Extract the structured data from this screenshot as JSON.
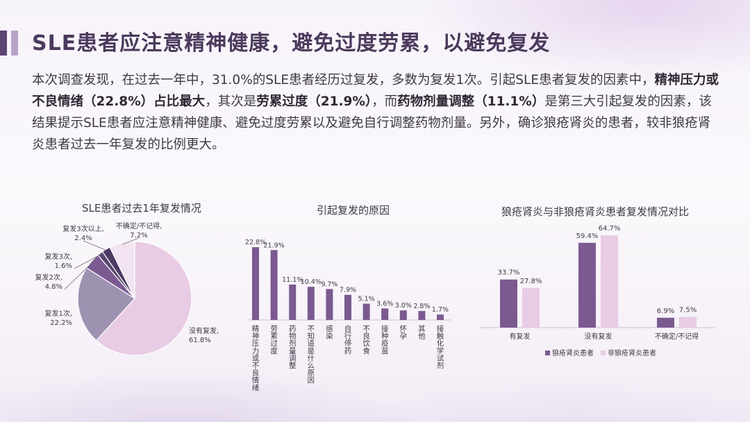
{
  "page": {
    "title": "SLE患者应注意精神健康，避免过度劳累，以避免复发",
    "intro": {
      "p1": "本次调查发现，在过去一年中，31.0%的SLE患者经历过复发，多数为复发1次。引起SLE患者复发的因素中，",
      "b1": "精神压力或不良情绪（22.8%）占比最大",
      "p2": "，其次是",
      "b2": "劳累过度（21.9%）",
      "p3": "，而",
      "b3": "药物剂量调整（11.1%）",
      "p4": "是第三大引起复发的因素，该结果提示SLE患者应注意精神健康、避免过度劳累以及避免自行调整药物剂量。另外，确诊狼疮肾炎的患者，较非狼疮肾炎患者过去一年复发的比例更大。"
    }
  },
  "colors": {
    "dark": "#7a5a90",
    "mid": "#9e92b1",
    "light": "#e8cbe4",
    "darkest": "#4e3a63",
    "accent": "#5e4474"
  },
  "chart_data": [
    {
      "type": "pie",
      "title": "SLE患者过去1年复发情况",
      "slices": [
        {
          "label": "没有复发,",
          "pct": "61.8%",
          "value": 61.8,
          "color": "#e8cbe4"
        },
        {
          "label": "复发1次,",
          "pct": "22.2%",
          "value": 22.2,
          "color": "#9e92b1"
        },
        {
          "label": "复发2次,",
          "pct": "4.8%",
          "value": 4.8,
          "color": "#7a5a90"
        },
        {
          "label": "复发3次,",
          "pct": "1.6%",
          "value": 1.6,
          "color": "#5a4670"
        },
        {
          "label": "复发3次以上,",
          "pct": "2.4%",
          "value": 2.4,
          "color": "#4e3a63"
        },
        {
          "label": "不确定/不记得,",
          "pct": "7.2%",
          "value": 7.2,
          "color": "#f1e3f0"
        }
      ]
    },
    {
      "type": "bar",
      "title": "引起复发的原因",
      "categories": [
        "精神压力或不良情绪",
        "劳累过度",
        "药物剂量调整",
        "不知道是什么原因",
        "感染",
        "自行停药",
        "不良饮食",
        "接种疫苗",
        "怀孕",
        "其他",
        "接触化学试剂"
      ],
      "values": [
        22.8,
        21.9,
        11.1,
        10.4,
        9.7,
        7.9,
        5.1,
        3.6,
        3.0,
        2.8,
        1.7
      ],
      "labels": [
        "22.8%",
        "21.9%",
        "11.1%",
        "10.4%",
        "9.7%",
        "7.9%",
        "5.1%",
        "3.6%",
        "3.0%",
        "2.8%",
        "1.7%"
      ],
      "ylim": [
        0,
        25
      ],
      "color": "#7a5a90"
    },
    {
      "type": "bar",
      "title": "狼疮肾炎与非狼疮肾炎患者复发情况对比",
      "categories": [
        "有复发",
        "没有复发",
        "不确定/不记得"
      ],
      "series": [
        {
          "name": "狼疮肾炎患者",
          "values": [
            33.7,
            59.4,
            6.9
          ],
          "labels": [
            "33.7%",
            "59.4%",
            "6.9%"
          ],
          "color": "#7a5a90"
        },
        {
          "name": "非狼疮肾炎患者",
          "values": [
            27.8,
            64.7,
            7.5
          ],
          "labels": [
            "27.8%",
            "64.7%",
            "7.5%"
          ],
          "color": "#e8cbe4"
        }
      ],
      "ylim": [
        0,
        70
      ],
      "legend": "bottom"
    }
  ]
}
